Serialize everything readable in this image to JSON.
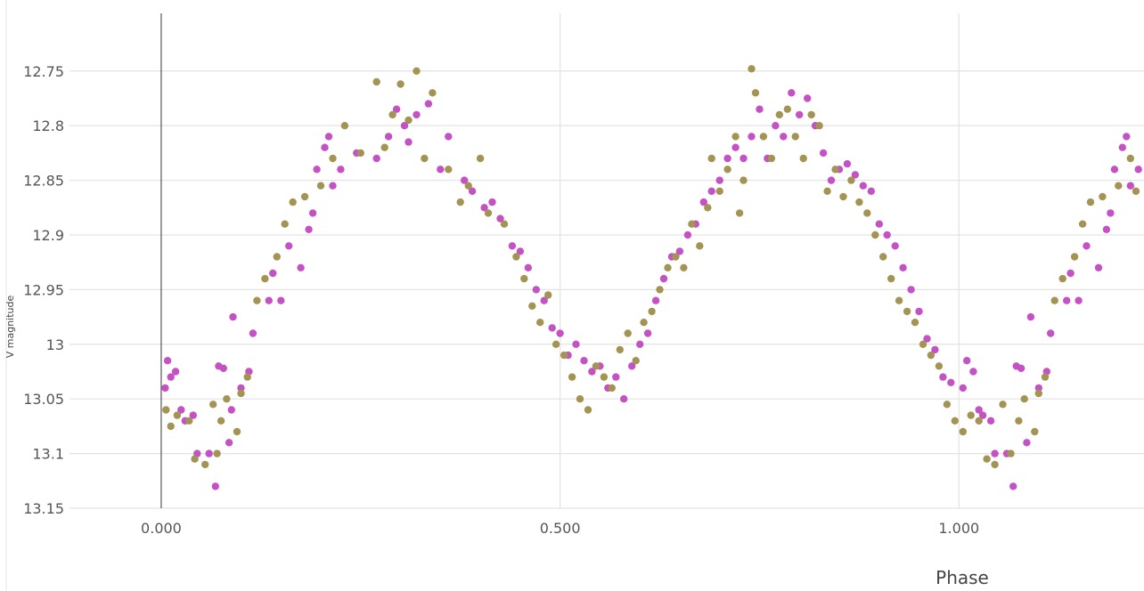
{
  "chart_data": {
    "type": "scatter",
    "title": "",
    "xlabel": "Phase",
    "ylabel": "V magnitude",
    "xlim": [
      -0.115,
      1.232
    ],
    "ylim": [
      13.15,
      12.716
    ],
    "y_inverted": true,
    "x_ticks": [
      "0.000",
      "0.500",
      "1.000"
    ],
    "x_tick_values": [
      0.0,
      0.5,
      1.0
    ],
    "y_ticks": [
      "12.75",
      "12.8",
      "12.85",
      "12.9",
      "12.95",
      "13",
      "13.05",
      "13.1",
      "13.15"
    ],
    "y_tick_values": [
      12.75,
      12.8,
      12.85,
      12.9,
      12.95,
      13.0,
      13.05,
      13.1,
      13.15
    ],
    "grid": true,
    "legend": "none",
    "series": [
      {
        "color": "#c452c4",
        "points": [
          [
            0.005,
            13.04
          ],
          [
            0.008,
            13.015
          ],
          [
            0.012,
            13.03
          ],
          [
            0.018,
            13.025
          ],
          [
            0.025,
            13.06
          ],
          [
            0.03,
            13.07
          ],
          [
            0.04,
            13.065
          ],
          [
            0.045,
            13.1
          ],
          [
            0.06,
            13.1
          ],
          [
            0.068,
            13.13
          ],
          [
            0.072,
            13.02
          ],
          [
            0.078,
            13.022
          ],
          [
            0.085,
            13.09
          ],
          [
            0.088,
            13.06
          ],
          [
            0.09,
            12.975
          ],
          [
            0.1,
            13.04
          ],
          [
            0.11,
            13.025
          ],
          [
            0.115,
            12.99
          ],
          [
            0.135,
            12.96
          ],
          [
            0.14,
            12.935
          ],
          [
            0.15,
            12.96
          ],
          [
            0.16,
            12.91
          ],
          [
            0.175,
            12.93
          ],
          [
            0.185,
            12.895
          ],
          [
            0.19,
            12.88
          ],
          [
            0.195,
            12.84
          ],
          [
            0.205,
            12.82
          ],
          [
            0.21,
            12.81
          ],
          [
            0.215,
            12.855
          ],
          [
            0.225,
            12.84
          ],
          [
            0.245,
            12.825
          ],
          [
            0.27,
            12.83
          ],
          [
            0.285,
            12.81
          ],
          [
            0.295,
            12.785
          ],
          [
            0.305,
            12.8
          ],
          [
            0.31,
            12.815
          ],
          [
            0.32,
            12.79
          ],
          [
            0.335,
            12.78
          ],
          [
            0.35,
            12.84
          ],
          [
            0.36,
            12.81
          ],
          [
            0.38,
            12.85
          ],
          [
            0.39,
            12.86
          ],
          [
            0.405,
            12.875
          ],
          [
            0.415,
            12.87
          ],
          [
            0.425,
            12.885
          ],
          [
            0.44,
            12.91
          ],
          [
            0.45,
            12.915
          ],
          [
            0.46,
            12.93
          ],
          [
            0.47,
            12.95
          ],
          [
            0.48,
            12.96
          ],
          [
            0.49,
            12.985
          ],
          [
            0.5,
            12.99
          ],
          [
            0.51,
            13.01
          ],
          [
            0.52,
            13.0
          ],
          [
            0.53,
            13.015
          ],
          [
            0.54,
            13.025
          ],
          [
            0.55,
            13.02
          ],
          [
            0.56,
            13.04
          ],
          [
            0.57,
            13.03
          ],
          [
            0.58,
            13.05
          ],
          [
            0.59,
            13.02
          ],
          [
            0.6,
            13.0
          ],
          [
            0.61,
            12.99
          ],
          [
            0.62,
            12.96
          ],
          [
            0.63,
            12.94
          ],
          [
            0.64,
            12.92
          ],
          [
            0.65,
            12.915
          ],
          [
            0.66,
            12.9
          ],
          [
            0.67,
            12.89
          ],
          [
            0.68,
            12.87
          ],
          [
            0.69,
            12.86
          ],
          [
            0.7,
            12.85
          ],
          [
            0.71,
            12.83
          ],
          [
            0.72,
            12.82
          ],
          [
            0.73,
            12.83
          ],
          [
            0.74,
            12.81
          ],
          [
            0.75,
            12.785
          ],
          [
            0.76,
            12.83
          ],
          [
            0.77,
            12.8
          ],
          [
            0.78,
            12.81
          ],
          [
            0.79,
            12.77
          ],
          [
            0.8,
            12.79
          ],
          [
            0.81,
            12.775
          ],
          [
            0.82,
            12.8
          ],
          [
            0.83,
            12.825
          ],
          [
            0.84,
            12.85
          ],
          [
            0.85,
            12.84
          ],
          [
            0.86,
            12.835
          ],
          [
            0.87,
            12.845
          ],
          [
            0.88,
            12.855
          ],
          [
            0.89,
            12.86
          ],
          [
            0.9,
            12.89
          ],
          [
            0.91,
            12.9
          ],
          [
            0.92,
            12.91
          ],
          [
            0.93,
            12.93
          ],
          [
            0.94,
            12.95
          ],
          [
            0.95,
            12.97
          ],
          [
            0.96,
            12.995
          ],
          [
            0.97,
            13.005
          ],
          [
            0.98,
            13.03
          ],
          [
            0.99,
            13.035
          ],
          [
            1.005,
            13.04
          ],
          [
            1.01,
            13.015
          ],
          [
            1.018,
            13.025
          ],
          [
            1.025,
            13.06
          ],
          [
            1.03,
            13.065
          ],
          [
            1.04,
            13.07
          ],
          [
            1.045,
            13.1
          ],
          [
            1.06,
            13.1
          ],
          [
            1.068,
            13.13
          ],
          [
            1.072,
            13.02
          ],
          [
            1.078,
            13.022
          ],
          [
            1.085,
            13.09
          ],
          [
            1.09,
            12.975
          ],
          [
            1.1,
            13.04
          ],
          [
            1.11,
            13.025
          ],
          [
            1.115,
            12.99
          ],
          [
            1.135,
            12.96
          ],
          [
            1.14,
            12.935
          ],
          [
            1.15,
            12.96
          ],
          [
            1.16,
            12.91
          ],
          [
            1.175,
            12.93
          ],
          [
            1.185,
            12.895
          ],
          [
            1.19,
            12.88
          ],
          [
            1.195,
            12.84
          ],
          [
            1.205,
            12.82
          ],
          [
            1.21,
            12.81
          ],
          [
            1.215,
            12.855
          ],
          [
            1.225,
            12.84
          ],
          [
            1.228,
            12.895
          ]
        ]
      },
      {
        "color": "#a39454",
        "points": [
          [
            0.006,
            13.06
          ],
          [
            0.012,
            13.075
          ],
          [
            0.02,
            13.065
          ],
          [
            0.035,
            13.07
          ],
          [
            0.042,
            13.105
          ],
          [
            0.055,
            13.11
          ],
          [
            0.065,
            13.055
          ],
          [
            0.07,
            13.1
          ],
          [
            0.075,
            13.07
          ],
          [
            0.082,
            13.05
          ],
          [
            0.095,
            13.08
          ],
          [
            0.1,
            13.045
          ],
          [
            0.108,
            13.03
          ],
          [
            0.12,
            12.96
          ],
          [
            0.13,
            12.94
          ],
          [
            0.145,
            12.92
          ],
          [
            0.155,
            12.89
          ],
          [
            0.165,
            12.87
          ],
          [
            0.18,
            12.865
          ],
          [
            0.2,
            12.855
          ],
          [
            0.215,
            12.83
          ],
          [
            0.23,
            12.8
          ],
          [
            0.25,
            12.825
          ],
          [
            0.27,
            12.76
          ],
          [
            0.28,
            12.82
          ],
          [
            0.29,
            12.79
          ],
          [
            0.3,
            12.762
          ],
          [
            0.31,
            12.795
          ],
          [
            0.32,
            12.75
          ],
          [
            0.33,
            12.83
          ],
          [
            0.34,
            12.77
          ],
          [
            0.36,
            12.84
          ],
          [
            0.375,
            12.87
          ],
          [
            0.385,
            12.855
          ],
          [
            0.4,
            12.83
          ],
          [
            0.41,
            12.88
          ],
          [
            0.43,
            12.89
          ],
          [
            0.445,
            12.92
          ],
          [
            0.455,
            12.94
          ],
          [
            0.465,
            12.965
          ],
          [
            0.475,
            12.98
          ],
          [
            0.485,
            12.955
          ],
          [
            0.495,
            13.0
          ],
          [
            0.505,
            13.01
          ],
          [
            0.515,
            13.03
          ],
          [
            0.525,
            13.05
          ],
          [
            0.535,
            13.06
          ],
          [
            0.545,
            13.02
          ],
          [
            0.555,
            13.03
          ],
          [
            0.565,
            13.04
          ],
          [
            0.575,
            13.005
          ],
          [
            0.585,
            12.99
          ],
          [
            0.595,
            13.015
          ],
          [
            0.605,
            12.98
          ],
          [
            0.615,
            12.97
          ],
          [
            0.625,
            12.95
          ],
          [
            0.635,
            12.93
          ],
          [
            0.645,
            12.92
          ],
          [
            0.655,
            12.93
          ],
          [
            0.665,
            12.89
          ],
          [
            0.675,
            12.91
          ],
          [
            0.685,
            12.875
          ],
          [
            0.69,
            12.83
          ],
          [
            0.7,
            12.86
          ],
          [
            0.71,
            12.84
          ],
          [
            0.72,
            12.81
          ],
          [
            0.725,
            12.88
          ],
          [
            0.73,
            12.85
          ],
          [
            0.74,
            12.748
          ],
          [
            0.745,
            12.77
          ],
          [
            0.755,
            12.81
          ],
          [
            0.765,
            12.83
          ],
          [
            0.775,
            12.79
          ],
          [
            0.785,
            12.785
          ],
          [
            0.795,
            12.81
          ],
          [
            0.805,
            12.83
          ],
          [
            0.815,
            12.79
          ],
          [
            0.825,
            12.8
          ],
          [
            0.835,
            12.86
          ],
          [
            0.845,
            12.84
          ],
          [
            0.855,
            12.865
          ],
          [
            0.865,
            12.85
          ],
          [
            0.875,
            12.87
          ],
          [
            0.885,
            12.88
          ],
          [
            0.895,
            12.9
          ],
          [
            0.905,
            12.92
          ],
          [
            0.915,
            12.94
          ],
          [
            0.925,
            12.96
          ],
          [
            0.935,
            12.97
          ],
          [
            0.945,
            12.98
          ],
          [
            0.955,
            13.0
          ],
          [
            0.965,
            13.01
          ],
          [
            0.975,
            13.02
          ],
          [
            0.985,
            13.055
          ],
          [
            0.995,
            13.07
          ],
          [
            1.005,
            13.08
          ],
          [
            1.015,
            13.065
          ],
          [
            1.025,
            13.07
          ],
          [
            1.035,
            13.105
          ],
          [
            1.045,
            13.11
          ],
          [
            1.055,
            13.055
          ],
          [
            1.065,
            13.1
          ],
          [
            1.075,
            13.07
          ],
          [
            1.082,
            13.05
          ],
          [
            1.095,
            13.08
          ],
          [
            1.1,
            13.045
          ],
          [
            1.108,
            13.03
          ],
          [
            1.12,
            12.96
          ],
          [
            1.13,
            12.94
          ],
          [
            1.145,
            12.92
          ],
          [
            1.155,
            12.89
          ],
          [
            1.165,
            12.87
          ],
          [
            1.18,
            12.865
          ],
          [
            1.2,
            12.855
          ],
          [
            1.215,
            12.83
          ],
          [
            1.23,
            12.81
          ],
          [
            1.222,
            12.86
          ]
        ]
      }
    ]
  }
}
